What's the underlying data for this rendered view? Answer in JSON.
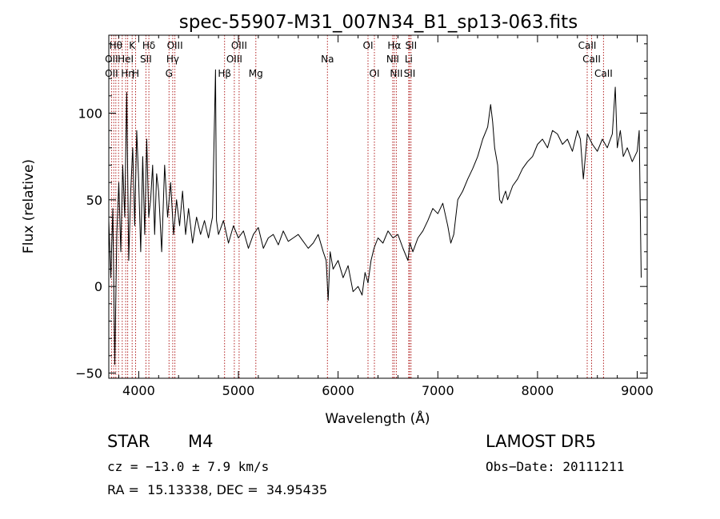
{
  "chart_data": {
    "type": "line",
    "title": "spec-55907-M31_007N34_B1_sp13-063.fits",
    "xlabel": "Wavelength (Å)",
    "ylabel": "Flux (relative)",
    "xlim": [
      3700,
      9100
    ],
    "ylim": [
      -53,
      145
    ],
    "x_ticks": [
      4000,
      5000,
      6000,
      7000,
      8000,
      9000
    ],
    "y_ticks": [
      -50,
      0,
      50,
      100
    ],
    "grid": false,
    "series": [
      {
        "color": "#000000",
        "x": [
          3700,
          3720,
          3740,
          3760,
          3780,
          3800,
          3820,
          3840,
          3860,
          3880,
          3900,
          3920,
          3940,
          3960,
          3980,
          4000,
          4020,
          4040,
          4060,
          4080,
          4100,
          4120,
          4140,
          4160,
          4180,
          4200,
          4230,
          4260,
          4290,
          4320,
          4350,
          4380,
          4410,
          4440,
          4470,
          4500,
          4540,
          4580,
          4620,
          4660,
          4700,
          4740,
          4770,
          4780,
          4800,
          4850,
          4900,
          4950,
          5000,
          5050,
          5100,
          5150,
          5200,
          5250,
          5300,
          5350,
          5400,
          5450,
          5500,
          5550,
          5600,
          5650,
          5700,
          5750,
          5800,
          5850,
          5880,
          5900,
          5920,
          5950,
          6000,
          6050,
          6100,
          6150,
          6200,
          6240,
          6270,
          6300,
          6330,
          6360,
          6400,
          6450,
          6500,
          6550,
          6600,
          6650,
          6700,
          6720,
          6750,
          6800,
          6850,
          6900,
          6950,
          7000,
          7050,
          7100,
          7130,
          7160,
          7200,
          7250,
          7300,
          7350,
          7400,
          7450,
          7500,
          7530,
          7550,
          7570,
          7600,
          7620,
          7640,
          7660,
          7680,
          7700,
          7750,
          7800,
          7850,
          7900,
          7950,
          8000,
          8050,
          8100,
          8150,
          8200,
          8250,
          8300,
          8350,
          8400,
          8430,
          8460,
          8500,
          8550,
          8600,
          8650,
          8700,
          8750,
          8780,
          8800,
          8830,
          8860,
          8900,
          8950,
          9000,
          9020,
          9040
        ],
        "y": [
          38,
          5,
          45,
          -45,
          30,
          60,
          20,
          70,
          40,
          112,
          15,
          55,
          80,
          35,
          90,
          60,
          20,
          75,
          30,
          85,
          40,
          50,
          70,
          30,
          65,
          55,
          20,
          70,
          40,
          60,
          30,
          50,
          35,
          55,
          30,
          45,
          25,
          40,
          30,
          38,
          28,
          40,
          125,
          38,
          30,
          38,
          25,
          35,
          28,
          32,
          22,
          30,
          34,
          22,
          28,
          30,
          24,
          32,
          26,
          28,
          30,
          26,
          22,
          25,
          30,
          20,
          15,
          -8,
          20,
          10,
          15,
          5,
          12,
          -3,
          0,
          -5,
          8,
          2,
          15,
          22,
          28,
          25,
          32,
          28,
          30,
          22,
          15,
          25,
          20,
          28,
          32,
          38,
          45,
          42,
          48,
          35,
          25,
          30,
          50,
          55,
          62,
          68,
          75,
          85,
          92,
          105,
          95,
          80,
          70,
          50,
          48,
          52,
          55,
          50,
          58,
          62,
          68,
          72,
          75,
          82,
          85,
          80,
          90,
          88,
          82,
          85,
          78,
          90,
          85,
          62,
          88,
          82,
          78,
          85,
          80,
          88,
          115,
          80,
          90,
          75,
          80,
          72,
          78,
          90,
          5
        ]
      }
    ],
    "line_marks": [
      {
        "x": 3727,
        "name": "OII"
      },
      {
        "x": 3750,
        "name": "Hη"
      },
      {
        "x": 3771,
        "name": "Hθ"
      },
      {
        "x": 3798,
        "name": ""
      },
      {
        "x": 3835,
        "name": ""
      },
      {
        "x": 3869,
        "name": "HeI"
      },
      {
        "x": 3889,
        "name": "Hη"
      },
      {
        "x": 3934,
        "name": "K"
      },
      {
        "x": 3969,
        "name": "H"
      },
      {
        "x": 4072,
        "name": "SII"
      },
      {
        "x": 4102,
        "name": "Hδ"
      },
      {
        "x": 4304,
        "name": "G"
      },
      {
        "x": 4341,
        "name": "Hγ"
      },
      {
        "x": 4363,
        "name": "OIII"
      },
      {
        "x": 4861,
        "name": "Hβ"
      },
      {
        "x": 4959,
        "name": "OIII"
      },
      {
        "x": 5007,
        "name": "OIII"
      },
      {
        "x": 5175,
        "name": "Mg"
      },
      {
        "x": 5893,
        "name": "Na"
      },
      {
        "x": 6300,
        "name": "OI"
      },
      {
        "x": 6364,
        "name": "OI"
      },
      {
        "x": 6548,
        "name": "NII"
      },
      {
        "x": 6563,
        "name": "Hα"
      },
      {
        "x": 6584,
        "name": "NII"
      },
      {
        "x": 6708,
        "name": "Li"
      },
      {
        "x": 6717,
        "name": "SII"
      },
      {
        "x": 6731,
        "name": "SII"
      },
      {
        "x": 8498,
        "name": "CaII"
      },
      {
        "x": 8542,
        "name": "CaII"
      },
      {
        "x": 8662,
        "name": "CaII"
      }
    ],
    "line_labels": [
      {
        "text": "Hθ",
        "x": 3771,
        "row": 1
      },
      {
        "text": "K",
        "x": 3934,
        "row": 1
      },
      {
        "text": "Hδ",
        "x": 4102,
        "row": 1
      },
      {
        "text": "OIII",
        "x": 4363,
        "row": 1
      },
      {
        "text": "OIII",
        "x": 5007,
        "row": 1
      },
      {
        "text": "OI",
        "x": 6300,
        "row": 1
      },
      {
        "text": "Hα",
        "x": 6563,
        "row": 1
      },
      {
        "text": "SII",
        "x": 6731,
        "row": 1
      },
      {
        "text": "CaII",
        "x": 8498,
        "row": 1
      },
      {
        "text": "OII",
        "x": 3727,
        "row": 2
      },
      {
        "text": "HeI",
        "x": 3869,
        "row": 2
      },
      {
        "text": "SII",
        "x": 4072,
        "row": 2
      },
      {
        "text": "Hγ",
        "x": 4341,
        "row": 2
      },
      {
        "text": "OIII",
        "x": 4959,
        "row": 2
      },
      {
        "text": "Na",
        "x": 5893,
        "row": 2
      },
      {
        "text": "NII",
        "x": 6548,
        "row": 2
      },
      {
        "text": "Li",
        "x": 6708,
        "row": 2
      },
      {
        "text": "CaII",
        "x": 8542,
        "row": 2
      },
      {
        "text": "OII",
        "x": 3727,
        "row": 3
      },
      {
        "text": "Hη",
        "x": 3889,
        "row": 3
      },
      {
        "text": "H",
        "x": 3969,
        "row": 3
      },
      {
        "text": "G",
        "x": 4304,
        "row": 3
      },
      {
        "text": "Hβ",
        "x": 4861,
        "row": 3
      },
      {
        "text": "Mg",
        "x": 5175,
        "row": 3
      },
      {
        "text": "OI",
        "x": 6364,
        "row": 3
      },
      {
        "text": "NII",
        "x": 6584,
        "row": 3
      },
      {
        "text": "SII",
        "x": 6717,
        "row": 3
      },
      {
        "text": "CaII",
        "x": 8662,
        "row": 3
      }
    ],
    "line_mark_color": "#b22222",
    "axis_color": "#000000"
  },
  "info": {
    "object_class": "STAR",
    "subclass": "M4",
    "survey": "LAMOST DR5",
    "cz": "cz = −13.0 ± 7.9 km/s",
    "obs_date": "Obs−Date: 20111211",
    "coords": "RA =  15.13338, DEC =  34.95435"
  }
}
